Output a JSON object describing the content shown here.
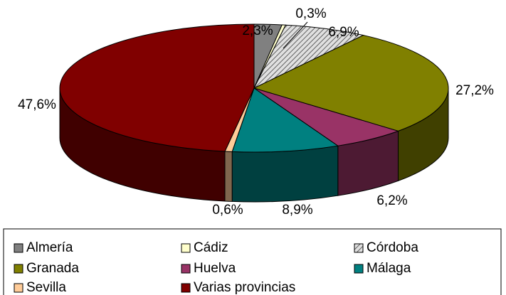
{
  "chart_data": {
    "type": "pie3d",
    "categories": [
      "Almería",
      "Cádiz",
      "Córdoba",
      "Granada",
      "Huelva",
      "Málaga",
      "Sevilla",
      "Varias provincias"
    ],
    "values": [
      2.3,
      0.3,
      6.9,
      27.2,
      6.2,
      8.9,
      0.6,
      47.6
    ],
    "value_labels": [
      "2,3%",
      "0,3%",
      "6,9%",
      "27,2%",
      "6,2%",
      "8,9%",
      "0,6%",
      "47,6%"
    ],
    "colors": [
      "#808080",
      "#ffffcc",
      "#c0c0c0",
      "#808000",
      "#993366",
      "#008080",
      "#ffcc99",
      "#800000"
    ],
    "patterns": [
      "solid",
      "solid",
      "hatched",
      "solid",
      "solid",
      "solid",
      "solid",
      "solid"
    ],
    "legend": "bottom"
  }
}
